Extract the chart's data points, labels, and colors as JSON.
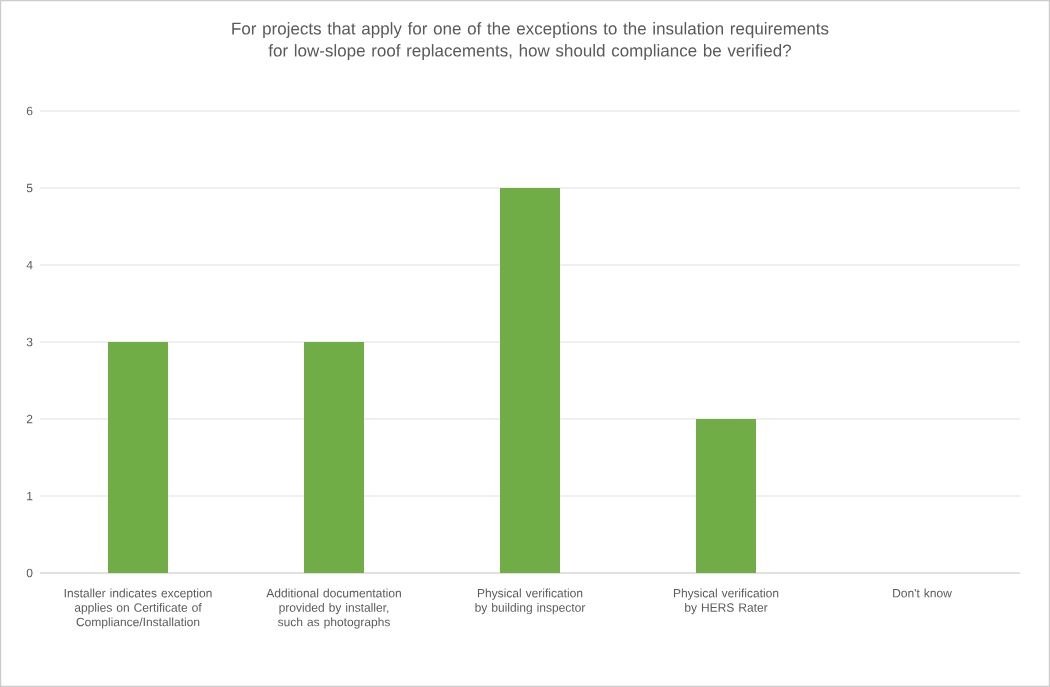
{
  "chart_data": {
    "type": "bar",
    "title": "For projects that apply for one of the exceptions to the insulation requirements for low-slope roof replacements, how should compliance be verified?",
    "categories": [
      "Installer indicates exception applies on Certificate of Compliance/Installation",
      "Additional documentation provided by installer, such as photographs",
      "Physical verification by building inspector",
      "Physical verification by HERS Rater",
      "Don't know"
    ],
    "values": [
      3,
      3,
      5,
      2,
      0
    ],
    "color": "#70ad47",
    "ylim": [
      0,
      6
    ],
    "yticks": [
      0,
      1,
      2,
      3,
      4,
      5,
      6
    ],
    "grid": "y"
  }
}
